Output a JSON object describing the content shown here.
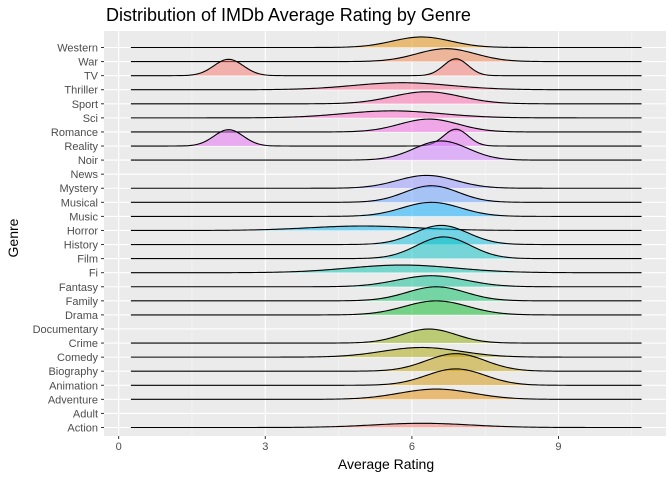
{
  "chart_data": {
    "type": "ridgeline",
    "title": "Distribution of IMDb Average Rating by Genre",
    "xlabel": "Average Rating",
    "ylabel": "Genre",
    "xlim": [
      -0.3,
      11.2
    ],
    "x_ticks": [
      0,
      3,
      6,
      9
    ],
    "grid": true,
    "ridge_scale": 2.5,
    "x_range": [
      0.25,
      10.7
    ],
    "colors": [
      "#F8766D",
      "#EF7F49",
      "#E38900",
      "#D39200",
      "#C09B00",
      "#A9A400",
      "#8CAB00",
      "#64B200",
      "#00B81F",
      "#00BD5C",
      "#00C08D",
      "#00C1AB",
      "#00BFC4",
      "#00BBDB",
      "#00B4EF",
      "#00A9FF",
      "#619CFF",
      "#8F91FF",
      "#B385FF",
      "#D078FF",
      "#E76BF3",
      "#F564E3",
      "#FF61C9",
      "#FF65AE",
      "#FF6C91"
    ],
    "genres": [
      {
        "name": "Action",
        "components": [
          {
            "mean": 6.2,
            "sd": 1.0,
            "weight": 0.3
          }
        ]
      },
      {
        "name": "Adult",
        "components": []
      },
      {
        "name": "Adventure",
        "components": [
          {
            "mean": 6.5,
            "sd": 0.75,
            "weight": 0.55
          }
        ]
      },
      {
        "name": "Animation",
        "components": [
          {
            "mean": 6.9,
            "sd": 0.6,
            "weight": 0.7
          }
        ]
      },
      {
        "name": "Biography",
        "components": [
          {
            "mean": 6.9,
            "sd": 0.6,
            "weight": 0.75
          }
        ]
      },
      {
        "name": "Comedy",
        "components": [
          {
            "mean": 6.2,
            "sd": 0.8,
            "weight": 0.55
          }
        ]
      },
      {
        "name": "Crime",
        "components": [
          {
            "mean": 6.35,
            "sd": 0.55,
            "weight": 0.55
          }
        ]
      },
      {
        "name": "Documentary",
        "components": []
      },
      {
        "name": "Drama",
        "components": [
          {
            "mean": 6.5,
            "sd": 0.65,
            "weight": 0.65
          }
        ]
      },
      {
        "name": "Family",
        "components": [
          {
            "mean": 6.5,
            "sd": 0.6,
            "weight": 0.6
          }
        ]
      },
      {
        "name": "Fantasy",
        "components": [
          {
            "mean": 6.4,
            "sd": 0.7,
            "weight": 0.55
          }
        ]
      },
      {
        "name": "Fi",
        "components": [
          {
            "mean": 5.8,
            "sd": 1.1,
            "weight": 0.6
          }
        ]
      },
      {
        "name": "Film",
        "components": [
          {
            "mean": 6.65,
            "sd": 0.55,
            "weight": 0.85
          }
        ]
      },
      {
        "name": "History",
        "components": [
          {
            "mean": 6.6,
            "sd": 0.55,
            "weight": 0.75
          }
        ]
      },
      {
        "name": "Horror",
        "components": [
          {
            "mean": 5.0,
            "sd": 1.1,
            "weight": 0.35
          }
        ]
      },
      {
        "name": "Music",
        "components": [
          {
            "mean": 6.4,
            "sd": 0.6,
            "weight": 0.6
          }
        ]
      },
      {
        "name": "Musical",
        "components": [
          {
            "mean": 6.4,
            "sd": 0.55,
            "weight": 0.65
          }
        ]
      },
      {
        "name": "Mystery",
        "components": [
          {
            "mean": 6.3,
            "sd": 0.6,
            "weight": 0.55
          }
        ]
      },
      {
        "name": "News",
        "components": []
      },
      {
        "name": "Noir",
        "components": [
          {
            "mean": 6.6,
            "sd": 0.55,
            "weight": 0.75
          }
        ]
      },
      {
        "name": "Reality",
        "components": [
          {
            "mean": 2.25,
            "sd": 0.3,
            "weight": 0.35
          },
          {
            "mean": 6.9,
            "sd": 0.25,
            "weight": 0.3
          }
        ]
      },
      {
        "name": "Romance",
        "components": [
          {
            "mean": 6.35,
            "sd": 0.6,
            "weight": 0.55
          }
        ]
      },
      {
        "name": "Sci",
        "components": [
          {
            "mean": 5.6,
            "sd": 1.0,
            "weight": 0.5
          }
        ]
      },
      {
        "name": "Sport",
        "components": [
          {
            "mean": 6.3,
            "sd": 0.7,
            "weight": 0.6
          }
        ]
      },
      {
        "name": "Thriller",
        "components": [
          {
            "mean": 5.8,
            "sd": 1.0,
            "weight": 0.5
          }
        ]
      },
      {
        "name": "TV",
        "components": [
          {
            "mean": 2.25,
            "sd": 0.3,
            "weight": 0.35
          },
          {
            "mean": 6.9,
            "sd": 0.25,
            "weight": 0.3
          }
        ]
      },
      {
        "name": "War",
        "components": [
          {
            "mean": 6.7,
            "sd": 0.6,
            "weight": 0.55
          }
        ]
      },
      {
        "name": "Western",
        "components": [
          {
            "mean": 6.2,
            "sd": 0.6,
            "weight": 0.45
          }
        ]
      }
    ]
  }
}
